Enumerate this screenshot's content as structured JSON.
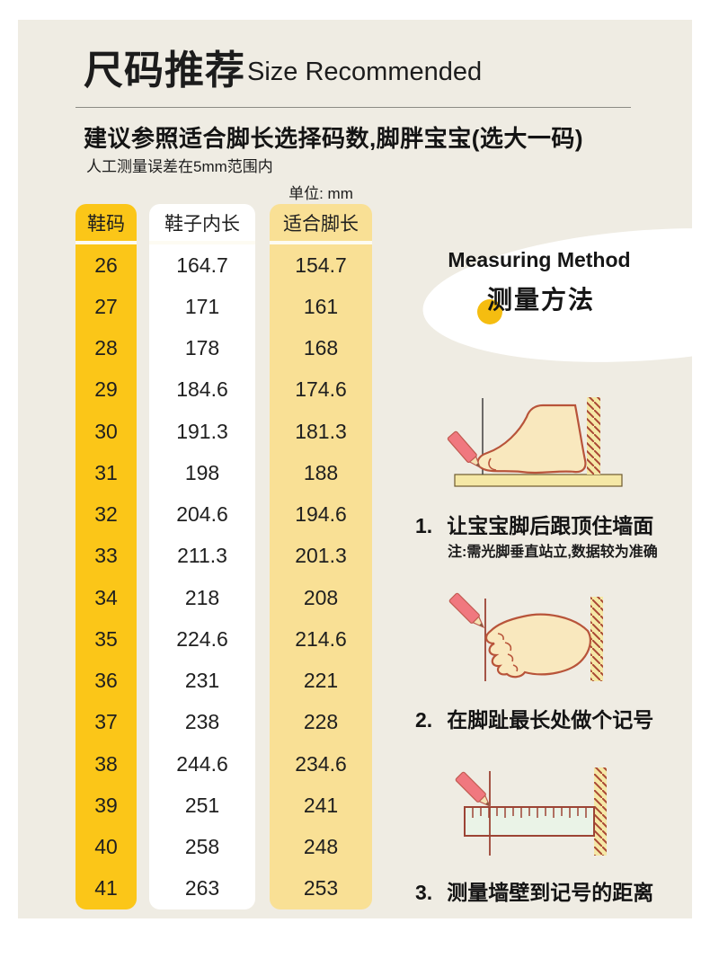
{
  "header": {
    "title_zh": "尺码推荐",
    "title_en": "Size Recommended",
    "subtitle": "建议参照适合脚长选择码数,脚胖宝宝(选大一码)",
    "note": "人工测量误差在5mm范围内"
  },
  "size_table": {
    "unit_label": "单位: mm",
    "columns": [
      "鞋码",
      "鞋子内长",
      "适合脚长"
    ],
    "rows": [
      [
        "26",
        "164.7",
        "154.7"
      ],
      [
        "27",
        "171",
        "161"
      ],
      [
        "28",
        "178",
        "168"
      ],
      [
        "29",
        "184.6",
        "174.6"
      ],
      [
        "30",
        "191.3",
        "181.3"
      ],
      [
        "31",
        "198",
        "188"
      ],
      [
        "32",
        "204.6",
        "194.6"
      ],
      [
        "33",
        "211.3",
        "201.3"
      ],
      [
        "34",
        "218",
        "208"
      ],
      [
        "35",
        "224.6",
        "214.6"
      ],
      [
        "36",
        "231",
        "221"
      ],
      [
        "37",
        "238",
        "228"
      ],
      [
        "38",
        "244.6",
        "234.6"
      ],
      [
        "39",
        "251",
        "241"
      ],
      [
        "40",
        "258",
        "248"
      ],
      [
        "41",
        "263",
        "253"
      ]
    ]
  },
  "measuring_method": {
    "title_en": "Measuring Method",
    "title_zh": "测量方法"
  },
  "steps": [
    {
      "num": "1.",
      "text": "让宝宝脚后跟顶住墙面",
      "note": "注:需光脚垂直站立,数据较为准确"
    },
    {
      "num": "2.",
      "text": "在脚趾最长处做个记号"
    },
    {
      "num": "3.",
      "text": "测量墙壁到记号的距离"
    }
  ],
  "colors": {
    "accent_gold": "#FBC618",
    "light_yellow": "#F9E095",
    "panel_bg": "#EFECE3",
    "outline_red": "#B8543A",
    "hatch_red": "#A94734",
    "pencil_pink": "#F0787F",
    "dot_yellow": "#F5BD10"
  }
}
